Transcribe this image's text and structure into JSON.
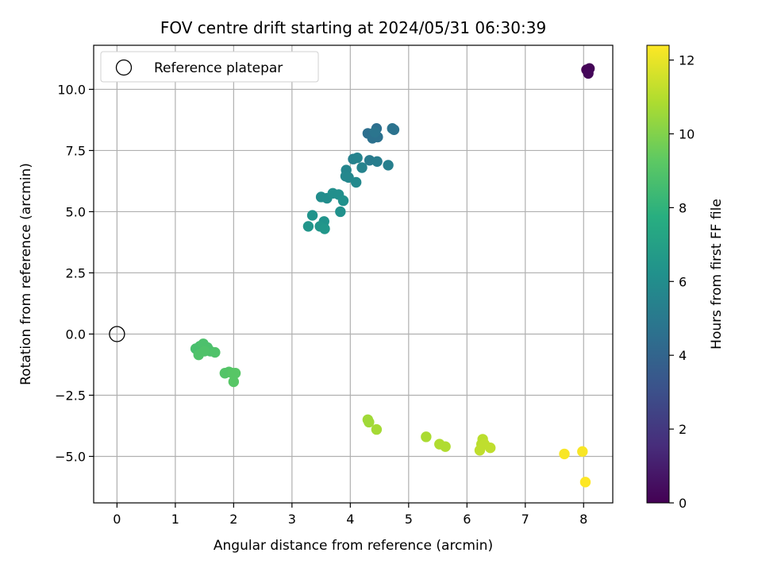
{
  "chart_data": {
    "type": "scatter",
    "title": "FOV centre drift starting at 2024/05/31 06:30:39",
    "xlabel": "Angular distance from reference (arcmin)",
    "ylabel": "Rotation from reference (arcmin)",
    "xlim": [
      -0.4,
      8.5
    ],
    "ylim": [
      -6.9,
      11.8
    ],
    "xticks": [
      0,
      1,
      2,
      3,
      4,
      5,
      6,
      7,
      8
    ],
    "xtick_labels": [
      "0",
      "1",
      "2",
      "3",
      "4",
      "5",
      "6",
      "7",
      "8"
    ],
    "yticks": [
      -5.0,
      -2.5,
      0.0,
      2.5,
      5.0,
      7.5,
      10.0
    ],
    "ytick_labels": [
      "−5.0",
      "−2.5",
      "0.0",
      "2.5",
      "5.0",
      "7.5",
      "10.0"
    ],
    "grid": true,
    "colormap": "viridis",
    "colorbar": {
      "label": "Hours from first FF file",
      "range": [
        0,
        12.4
      ],
      "ticks": [
        0,
        2,
        4,
        6,
        8,
        10,
        12
      ],
      "tick_labels": [
        "0",
        "2",
        "4",
        "6",
        "8",
        "10",
        "12"
      ]
    },
    "legend": {
      "position": "top-left",
      "entries": [
        {
          "label": "Reference platepar",
          "marker": "open-circle",
          "color": "#000000"
        }
      ]
    },
    "reference_point": {
      "x": 0,
      "y": 0
    },
    "points": [
      {
        "x": 8.05,
        "y": 10.8,
        "hours": 0.0
      },
      {
        "x": 8.1,
        "y": 10.85,
        "hours": 0.1
      },
      {
        "x": 8.08,
        "y": 10.65,
        "hours": 0.2
      },
      {
        "x": 4.3,
        "y": 8.2,
        "hours": 4.5
      },
      {
        "x": 4.45,
        "y": 8.4,
        "hours": 4.5
      },
      {
        "x": 4.38,
        "y": 8.0,
        "hours": 4.6
      },
      {
        "x": 4.47,
        "y": 8.05,
        "hours": 4.6
      },
      {
        "x": 4.72,
        "y": 8.4,
        "hours": 4.7
      },
      {
        "x": 4.75,
        "y": 8.35,
        "hours": 4.7
      },
      {
        "x": 4.42,
        "y": 8.25,
        "hours": 4.8
      },
      {
        "x": 4.33,
        "y": 7.1,
        "hours": 5.1
      },
      {
        "x": 4.46,
        "y": 7.05,
        "hours": 5.2
      },
      {
        "x": 4.65,
        "y": 6.9,
        "hours": 5.3
      },
      {
        "x": 4.05,
        "y": 7.15,
        "hours": 5.4
      },
      {
        "x": 4.12,
        "y": 7.2,
        "hours": 5.5
      },
      {
        "x": 4.2,
        "y": 6.8,
        "hours": 5.5
      },
      {
        "x": 3.93,
        "y": 6.7,
        "hours": 5.6
      },
      {
        "x": 3.92,
        "y": 6.45,
        "hours": 5.7
      },
      {
        "x": 3.97,
        "y": 6.4,
        "hours": 5.7
      },
      {
        "x": 4.1,
        "y": 6.2,
        "hours": 5.8
      },
      {
        "x": 3.5,
        "y": 5.6,
        "hours": 6.0
      },
      {
        "x": 3.6,
        "y": 5.55,
        "hours": 6.0
      },
      {
        "x": 3.7,
        "y": 5.75,
        "hours": 6.1
      },
      {
        "x": 3.8,
        "y": 5.7,
        "hours": 6.1
      },
      {
        "x": 3.88,
        "y": 5.45,
        "hours": 6.2
      },
      {
        "x": 3.83,
        "y": 5.0,
        "hours": 6.2
      },
      {
        "x": 3.35,
        "y": 4.85,
        "hours": 6.3
      },
      {
        "x": 3.55,
        "y": 4.6,
        "hours": 6.3
      },
      {
        "x": 3.28,
        "y": 4.4,
        "hours": 6.4
      },
      {
        "x": 3.48,
        "y": 4.4,
        "hours": 6.4
      },
      {
        "x": 3.56,
        "y": 4.3,
        "hours": 6.5
      },
      {
        "x": 1.35,
        "y": -0.6,
        "hours": 8.7
      },
      {
        "x": 1.42,
        "y": -0.5,
        "hours": 8.7
      },
      {
        "x": 1.48,
        "y": -0.4,
        "hours": 8.8
      },
      {
        "x": 1.55,
        "y": -0.55,
        "hours": 8.8
      },
      {
        "x": 1.6,
        "y": -0.7,
        "hours": 8.8
      },
      {
        "x": 1.68,
        "y": -0.75,
        "hours": 8.9
      },
      {
        "x": 1.4,
        "y": -0.85,
        "hours": 8.9
      },
      {
        "x": 1.5,
        "y": -0.7,
        "hours": 8.9
      },
      {
        "x": 1.85,
        "y": -1.6,
        "hours": 9.0
      },
      {
        "x": 1.92,
        "y": -1.55,
        "hours": 9.0
      },
      {
        "x": 1.98,
        "y": -1.6,
        "hours": 9.1
      },
      {
        "x": 2.03,
        "y": -1.6,
        "hours": 9.1
      },
      {
        "x": 2.0,
        "y": -1.95,
        "hours": 9.1
      },
      {
        "x": 4.3,
        "y": -3.5,
        "hours": 10.6
      },
      {
        "x": 4.32,
        "y": -3.6,
        "hours": 10.6
      },
      {
        "x": 4.45,
        "y": -3.9,
        "hours": 10.7
      },
      {
        "x": 5.3,
        "y": -4.2,
        "hours": 10.8
      },
      {
        "x": 5.53,
        "y": -4.5,
        "hours": 10.9
      },
      {
        "x": 5.63,
        "y": -4.6,
        "hours": 10.9
      },
      {
        "x": 6.27,
        "y": -4.3,
        "hours": 11.1
      },
      {
        "x": 6.25,
        "y": -4.5,
        "hours": 11.1
      },
      {
        "x": 6.3,
        "y": -4.5,
        "hours": 11.2
      },
      {
        "x": 6.4,
        "y": -4.65,
        "hours": 11.2
      },
      {
        "x": 6.22,
        "y": -4.75,
        "hours": 11.2
      },
      {
        "x": 7.67,
        "y": -4.9,
        "hours": 12.3
      },
      {
        "x": 7.98,
        "y": -4.8,
        "hours": 12.3
      },
      {
        "x": 8.03,
        "y": -6.05,
        "hours": 12.4
      }
    ]
  }
}
